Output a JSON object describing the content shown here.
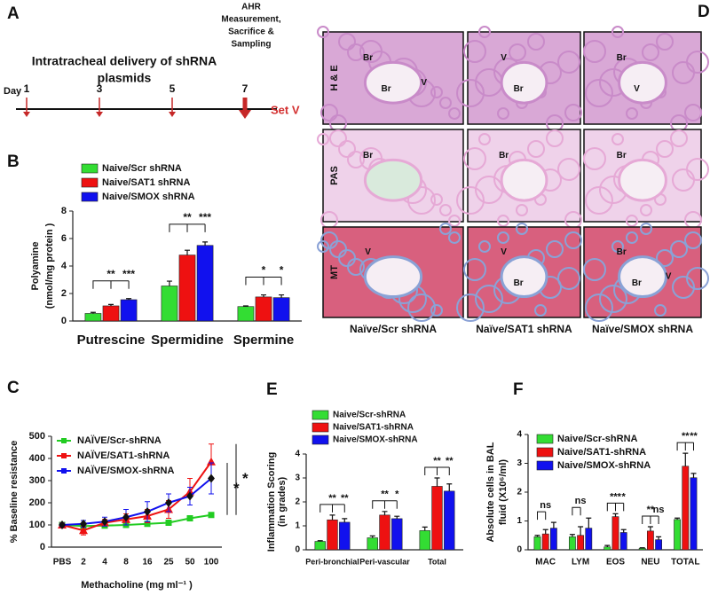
{
  "panel_letters": [
    "A",
    "B",
    "C",
    "D",
    "E",
    "F"
  ],
  "timeline": {
    "title": [
      "Intratracheal delivery of shRNA",
      "plasmids"
    ],
    "note": [
      "AHR",
      "Measurement,",
      "Sacrifice &",
      "Sampling"
    ],
    "day_label": "Day",
    "days": [
      1,
      3,
      5,
      7
    ],
    "set": "Set V"
  },
  "histology": {
    "rows": [
      {
        "label": "H & E",
        "cells": [
          [
            "Br",
            "Br",
            "V"
          ],
          [
            "V",
            "Br"
          ],
          [
            "Br",
            "V"
          ]
        ]
      },
      {
        "label": "PAS",
        "cells": [
          [
            "Br"
          ],
          [
            "Br"
          ],
          [
            "Br"
          ]
        ]
      },
      {
        "label": "MT",
        "cells": [
          [
            "V"
          ],
          [
            "V",
            "Br"
          ],
          [
            "Br",
            "Br",
            "V"
          ]
        ]
      }
    ],
    "columns": [
      "Naïve/Scr shRNA",
      "Naïve/SAT1 shRNA",
      "Naïve/SMOX shRNA"
    ]
  },
  "chart_data": [
    {
      "type": "bar",
      "ylabel": [
        "Polyamine",
        "(nmol/mg protein )"
      ],
      "categories": [
        "Putrescine",
        "Spermidine",
        "Spermine"
      ],
      "series": [
        {
          "name": "Naive/Scr shRNA",
          "color": "#33dd33",
          "values": [
            0.55,
            2.55,
            1.05
          ],
          "errors": [
            0.08,
            0.35,
            0.05
          ]
        },
        {
          "name": "Naive/SAT1 shRNA",
          "color": "#ee1111",
          "values": [
            1.1,
            4.8,
            1.75
          ],
          "errors": [
            0.1,
            0.35,
            0.15
          ]
        },
        {
          "name": "Naive/SMOX shRNA",
          "color": "#1111ee",
          "values": [
            1.55,
            5.5,
            1.7
          ],
          "errors": [
            0.08,
            0.25,
            0.2
          ]
        }
      ],
      "annotations": [
        [
          "**",
          "***"
        ],
        [
          "**",
          "***"
        ],
        [
          "*",
          "*"
        ]
      ],
      "ylim": [
        0,
        8
      ],
      "yticks": [
        0,
        2,
        4,
        6,
        8
      ],
      "legend": "top-left"
    },
    {
      "type": "line",
      "ylabel": [
        "% Baseline  resistance"
      ],
      "xlabel": "Methacholine (mg ml⁻¹ )",
      "categories": [
        "PBS",
        "2",
        "4",
        "8",
        "16",
        "25",
        "50",
        "100"
      ],
      "series": [
        {
          "name": "NAÏVE/Scr-shRNA",
          "color": "#22cc22",
          "marker": "square",
          "values": [
            100,
            95,
            97,
            100,
            105,
            110,
            130,
            145
          ],
          "errors": [
            8,
            5,
            5,
            5,
            5,
            8,
            8,
            8
          ]
        },
        {
          "name": "NAÏVE/SAT1-shRNA",
          "color": "#ee1111",
          "marker": "triangle",
          "values": [
            100,
            75,
            110,
            125,
            140,
            170,
            250,
            385
          ],
          "errors": [
            10,
            20,
            15,
            25,
            30,
            40,
            60,
            80
          ]
        },
        {
          "name": "NAÏVE/SMOX-shRNA",
          "color": "#1111ee",
          "marker": "diamond",
          "values": [
            100,
            105,
            115,
            135,
            160,
            200,
            230,
            310
          ],
          "errors": [
            8,
            15,
            20,
            35,
            45,
            40,
            40,
            70
          ]
        }
      ],
      "annotations": [
        "*",
        "*"
      ],
      "ylim": [
        0,
        500
      ],
      "yticks": [
        0,
        100,
        200,
        300,
        400,
        500
      ],
      "legend": "top-left"
    },
    {
      "type": "bar",
      "ylabel": [
        "Inflammation Scoring",
        "(in grades)"
      ],
      "categories": [
        "Peri-bronchial",
        "Peri-vascular",
        "Total"
      ],
      "series": [
        {
          "name": "Naive/Scr-shRNA",
          "color": "#33dd33",
          "values": [
            0.35,
            0.5,
            0.8
          ],
          "errors": [
            0.03,
            0.08,
            0.15
          ]
        },
        {
          "name": "Naive/SAT1-shRNA",
          "color": "#ee1111",
          "values": [
            1.25,
            1.45,
            2.65
          ],
          "errors": [
            0.2,
            0.15,
            0.35
          ]
        },
        {
          "name": "Naive/SMOX-shRNA",
          "color": "#1111ee",
          "values": [
            1.15,
            1.3,
            2.45
          ],
          "errors": [
            0.15,
            0.1,
            0.3
          ]
        }
      ],
      "annotations": [
        [
          "**",
          "**"
        ],
        [
          "**",
          "*"
        ],
        [
          "**",
          "**"
        ]
      ],
      "ylim": [
        0,
        4
      ],
      "yticks": [
        0,
        1,
        2,
        3,
        4
      ],
      "legend": "top-left"
    },
    {
      "type": "bar",
      "ylabel": [
        "Absolute cells in BAL",
        "fluid (X10⁶/ml)"
      ],
      "categories": [
        "MAC",
        "LYM",
        "EOS",
        "NEU",
        "TOTAL"
      ],
      "series": [
        {
          "name": "Naive/Scr-shRNA",
          "color": "#33dd33",
          "values": [
            0.45,
            0.45,
            0.1,
            0.05,
            1.05
          ],
          "errors": [
            0.05,
            0.08,
            0.05,
            0.02,
            0.05
          ]
        },
        {
          "name": "Naive/SAT1-shRNA",
          "color": "#ee1111",
          "values": [
            0.55,
            0.5,
            1.15,
            0.65,
            2.9
          ],
          "errors": [
            0.15,
            0.3,
            0.1,
            0.15,
            0.45
          ]
        },
        {
          "name": "Naive/SMOX-shRNA",
          "color": "#1111ee",
          "values": [
            0.75,
            0.75,
            0.6,
            0.35,
            2.5
          ],
          "errors": [
            0.2,
            0.35,
            0.1,
            0.1,
            0.15
          ]
        }
      ],
      "annotations": [
        [
          "ns"
        ],
        [
          "ns"
        ],
        [
          "***",
          "*"
        ],
        [
          "**",
          "ns"
        ],
        [
          "**",
          "**"
        ]
      ],
      "ylim": [
        0,
        4
      ],
      "yticks": [
        0,
        1,
        2,
        3,
        4
      ],
      "legend": "top-left"
    }
  ]
}
